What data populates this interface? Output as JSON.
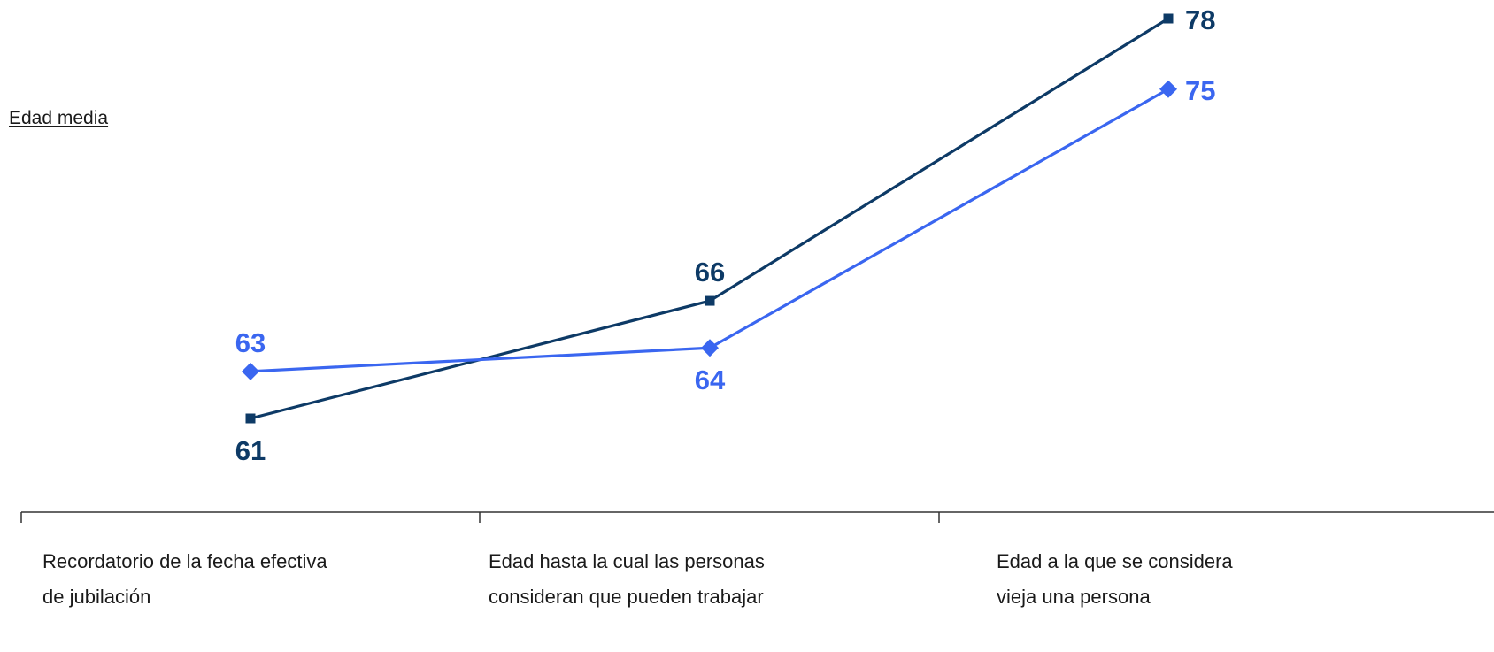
{
  "chart_data": {
    "type": "line",
    "ylabel": "Edad media",
    "xlabel": "",
    "categories": [
      [
        "Recordatorio de la fecha efectiva",
        "de jubilación"
      ],
      [
        "Edad hasta la cual las personas",
        "consideran que pueden trabajar"
      ],
      [
        "Edad a la que se considera",
        "vieja una persona"
      ]
    ],
    "ylim": [
      55,
      80
    ],
    "grid": false,
    "legend": "none",
    "series": [
      {
        "color": "#0d3a66",
        "marker": "square",
        "values": [
          61,
          66,
          78
        ],
        "label_positions": [
          "below",
          "above",
          "right"
        ]
      },
      {
        "color": "#3a66f0",
        "marker": "diamond",
        "values": [
          63,
          64,
          75
        ],
        "label_positions": [
          "above",
          "below",
          "right"
        ]
      }
    ]
  }
}
